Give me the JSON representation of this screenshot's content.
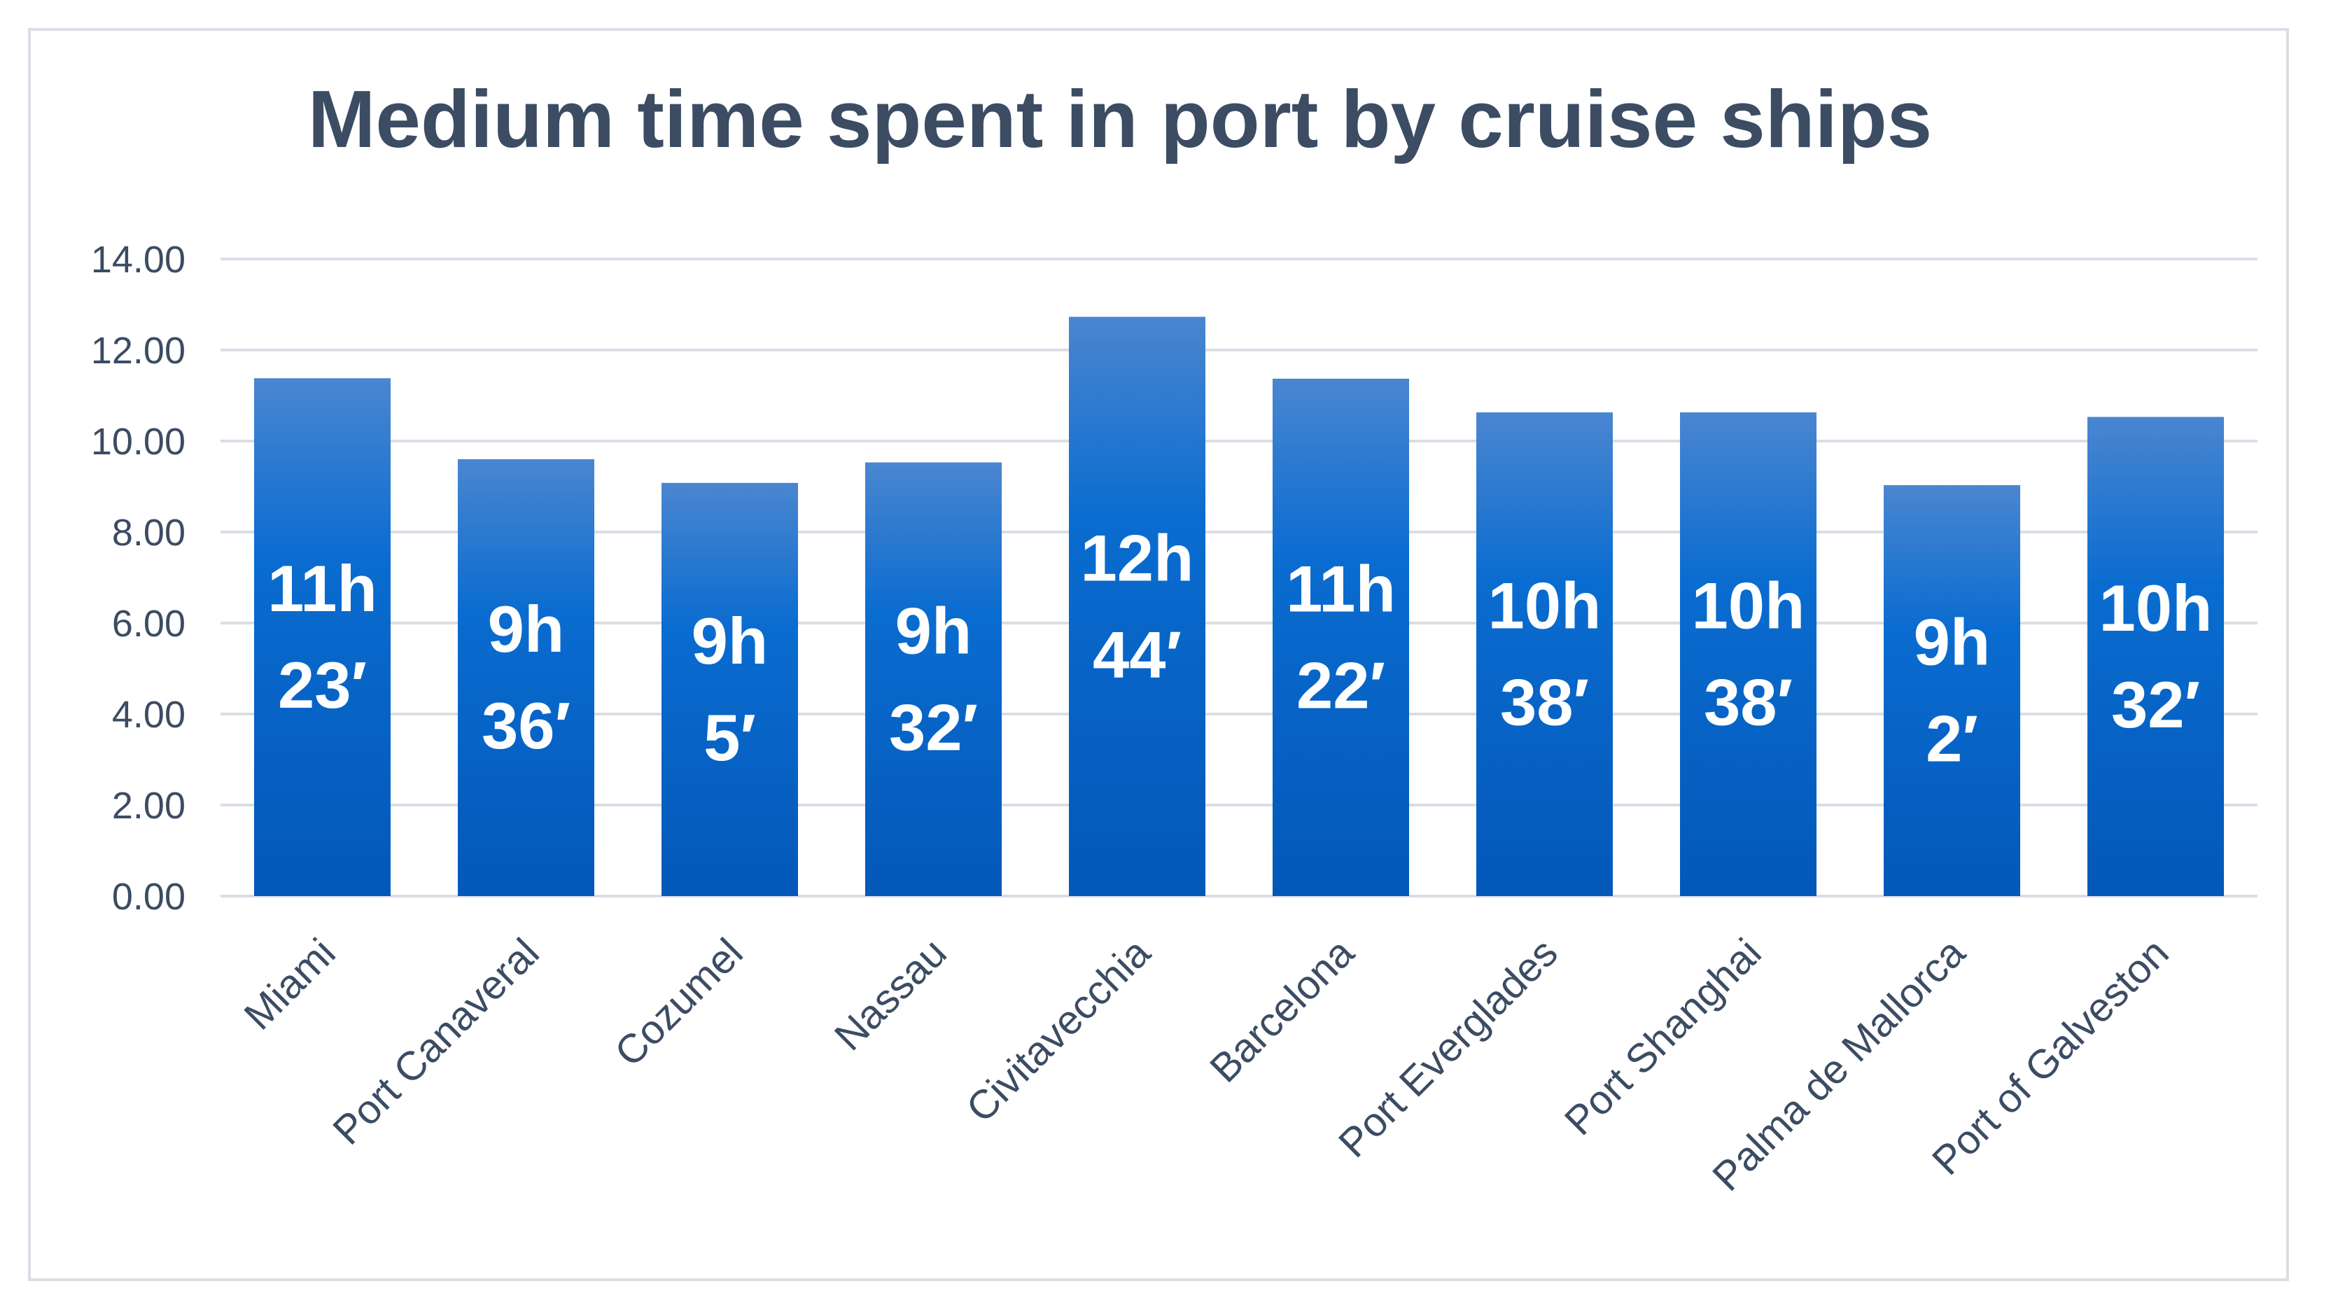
{
  "chart_data": {
    "type": "bar",
    "title": "Medium time spent in port by cruise ships",
    "xlabel": "",
    "ylabel": "",
    "ylim": [
      0,
      14
    ],
    "yticks": [
      "0.00",
      "2.00",
      "4.00",
      "6.00",
      "8.00",
      "10.00",
      "12.00",
      "14.00"
    ],
    "grid": true,
    "legend": "none",
    "categories": [
      "Miami",
      "Port Canaveral",
      "Cozumel",
      "Nassau",
      "Civitavecchia",
      "Barcelona",
      "Port Everglades",
      "Port Shanghai",
      "Palma de Mallorca",
      "Port of Galveston"
    ],
    "values": [
      11.38,
      9.6,
      9.08,
      9.53,
      12.73,
      11.37,
      10.63,
      10.63,
      9.03,
      10.53
    ],
    "data_labels": [
      [
        "11h",
        "23′"
      ],
      [
        "9h",
        "36′"
      ],
      [
        "9h",
        "5′"
      ],
      [
        "9h",
        "32′"
      ],
      [
        "12h",
        "44′"
      ],
      [
        "11h",
        "22′"
      ],
      [
        "10h",
        "38′"
      ],
      [
        "10h",
        "38′"
      ],
      [
        "9h",
        "2′"
      ],
      [
        "10h",
        "32′"
      ]
    ],
    "colors": {
      "bar_top": "#4a86d0",
      "bar_mid": "#0a6cd0",
      "bar_bottom": "#0358b8",
      "text": "#3b4c63",
      "grid": "#d9dee5"
    }
  }
}
